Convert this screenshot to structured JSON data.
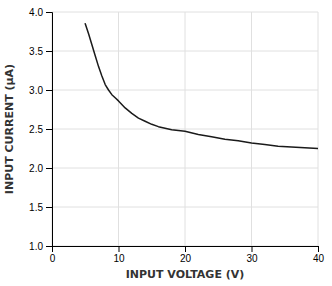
{
  "chart_data": {
    "type": "line",
    "xlabel": "INPUT VOLTAGE (V)",
    "ylabel": "INPUT CURRENT (μA)",
    "x": [
      5,
      5.5,
      6,
      6.5,
      7,
      7.5,
      8,
      8.5,
      9,
      9.5,
      10,
      11,
      12,
      13,
      14,
      15,
      16,
      17,
      18,
      19,
      20,
      22,
      24,
      26,
      28,
      30,
      32,
      34,
      36,
      38,
      40
    ],
    "values": [
      3.85,
      3.72,
      3.58,
      3.44,
      3.3,
      3.18,
      3.07,
      3.0,
      2.94,
      2.9,
      2.86,
      2.77,
      2.7,
      2.64,
      2.6,
      2.56,
      2.53,
      2.51,
      2.49,
      2.48,
      2.47,
      2.43,
      2.4,
      2.37,
      2.35,
      2.32,
      2.3,
      2.28,
      2.27,
      2.26,
      2.25
    ],
    "color": "#1a1a1a",
    "xlim": [
      0,
      40
    ],
    "ylim": [
      1.0,
      4.0
    ],
    "xticks": [
      0,
      10,
      20,
      30,
      40
    ],
    "yticks": [
      {
        "value": 1.0,
        "label": "1.0"
      },
      1.5,
      {
        "value": 2.0,
        "label": "2.0"
      },
      2.5,
      {
        "value": 3.0,
        "label": "3.0"
      },
      3.5,
      {
        "value": 4.0,
        "label": "4.0"
      }
    ],
    "grid": true
  }
}
